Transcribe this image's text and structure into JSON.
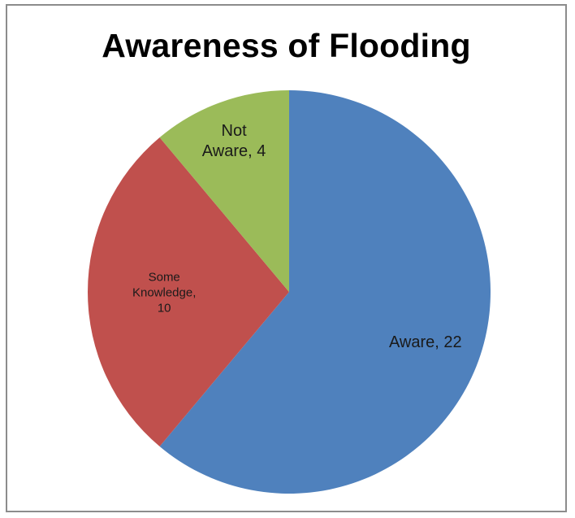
{
  "chart_data": {
    "type": "pie",
    "title": "Awareness of Flooding",
    "categories": [
      "Aware",
      "Some Knowledge",
      "Not Aware"
    ],
    "values": [
      22,
      10,
      4
    ],
    "labels": [
      [
        "Aware, 22"
      ],
      [
        "Some",
        "Knowledge,",
        "10"
      ],
      [
        "Not",
        "Aware, 4"
      ]
    ],
    "colors": [
      "#4f81bd",
      "#c0504d",
      "#9bbb59"
    ],
    "start_angle": "12 o'clock",
    "direction": "clockwise",
    "legend": "none"
  }
}
